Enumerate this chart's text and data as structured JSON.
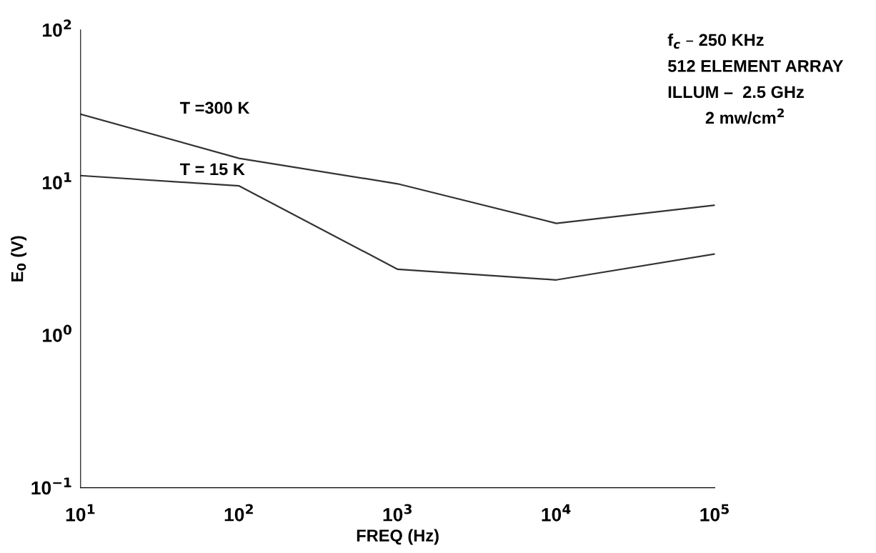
{
  "chart_data": {
    "type": "line",
    "xlabel": "FREQ (Hz)",
    "ylabel": "E$_{0}$ (V)",
    "log": "xy",
    "x": [
      10,
      100,
      1000,
      10000,
      100000
    ],
    "series": [
      {
        "name": "T =300 K",
        "color": "#333333",
        "values": [
          28,
          14.4,
          9.8,
          5.4,
          7.1
        ]
      },
      {
        "name": "T = 15 K",
        "color": "#333333",
        "values": [
          11.1,
          9.5,
          2.7,
          2.3,
          3.4
        ]
      }
    ],
    "xlim": [
      10,
      100000
    ],
    "ylim": [
      0.1,
      100
    ],
    "xticks": [
      {
        "value": 10,
        "label": "10$^{1}$"
      },
      {
        "value": 100,
        "label": "10$^{2}$"
      },
      {
        "value": 1000,
        "label": "10$^{3}$"
      },
      {
        "value": 10000,
        "label": "10$^{4}$"
      },
      {
        "value": 100000,
        "label": "10$^{5}$"
      }
    ],
    "yticks": [
      {
        "value": 0.1,
        "label": "10$^{−1}$"
      },
      {
        "value": 1,
        "label": "10$^{0}$"
      },
      {
        "value": 10,
        "label": "10$^{1}$"
      },
      {
        "value": 100,
        "label": "10$^{2}$"
      }
    ],
    "annotations": [
      "f$_{c}$ – 250 KHz",
      "512 ELEMENT ARRAY",
      "ILLUM –  2.5 GHz",
      "2 mw/cm$^{2}$"
    ],
    "grid": false,
    "legend": false,
    "marker": "none",
    "line_style": "solid"
  }
}
